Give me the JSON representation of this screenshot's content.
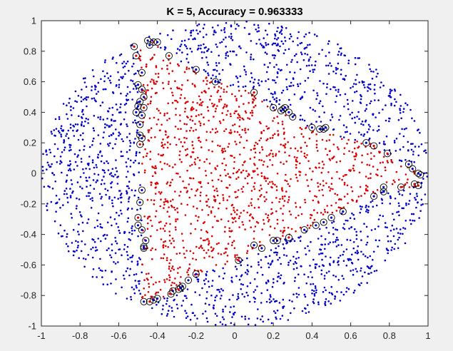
{
  "window": {
    "background": "#f0f0f0"
  },
  "chart_data": {
    "type": "scatter",
    "title": "K = 5, Accuracy = 0.963333",
    "xlabel": "",
    "ylabel": "",
    "xlim": [
      -1,
      1
    ],
    "ylim": [
      -1,
      1
    ],
    "xticks": [
      -1,
      -0.8,
      -0.6,
      -0.4,
      -0.2,
      0,
      0.2,
      0.4,
      0.6,
      0.8,
      1
    ],
    "yticks": [
      -1,
      -0.8,
      -0.6,
      -0.4,
      -0.2,
      0,
      0.2,
      0.4,
      0.6,
      0.8,
      1
    ],
    "tick_labels_x": [
      "-1",
      "-0.8",
      "-0.6",
      "-0.4",
      "-0.2",
      "0",
      "0.2",
      "0.4",
      "0.6",
      "0.8",
      "1"
    ],
    "tick_labels_y": [
      "-1",
      "-0.8",
      "-0.6",
      "-0.4",
      "-0.2",
      "0",
      "0.2",
      "0.4",
      "0.6",
      "0.8",
      "1"
    ],
    "grid": false,
    "legend": "none",
    "colors": {
      "blue": "#0000cc",
      "red": "#dd0000",
      "circle": "#000000",
      "axes_bg": "#ffffff"
    },
    "sampling": {
      "description": "approx. 3000 points uniformly distributed in the unit disk; red inside the decision region, blue outside",
      "total_points": 3000,
      "accuracy": 0.963333,
      "k": 5
    },
    "region_boundary": [
      [
        -0.5,
        0.83
      ],
      [
        -0.46,
        0.87
      ],
      [
        -0.42,
        0.86
      ],
      [
        -0.34,
        0.77
      ],
      [
        -0.2,
        0.68
      ],
      [
        -0.1,
        0.6
      ],
      [
        0.1,
        0.53
      ],
      [
        0.2,
        0.43
      ],
      [
        0.28,
        0.4
      ],
      [
        0.35,
        0.32
      ],
      [
        0.45,
        0.28
      ],
      [
        0.6,
        0.22
      ],
      [
        0.7,
        0.2
      ],
      [
        0.78,
        0.13
      ],
      [
        0.88,
        0.06
      ],
      [
        0.96,
        0.0
      ],
      [
        0.96,
        -0.08
      ],
      [
        0.88,
        -0.1
      ],
      [
        0.76,
        -0.12
      ],
      [
        0.72,
        -0.15
      ],
      [
        0.56,
        -0.25
      ],
      [
        0.5,
        -0.29
      ],
      [
        0.42,
        -0.35
      ],
      [
        0.36,
        -0.37
      ],
      [
        0.28,
        -0.42
      ],
      [
        0.22,
        -0.44
      ],
      [
        0.14,
        -0.49
      ],
      [
        0.02,
        -0.57
      ],
      [
        -0.2,
        -0.67
      ],
      [
        -0.28,
        -0.75
      ],
      [
        -0.32,
        -0.79
      ],
      [
        -0.4,
        -0.83
      ],
      [
        -0.48,
        -0.85
      ],
      [
        -0.48,
        -0.6
      ],
      [
        -0.48,
        -0.2
      ],
      [
        -0.48,
        0.2
      ],
      [
        -0.48,
        0.5
      ],
      [
        -0.5,
        0.8
      ]
    ],
    "misclassified": [
      {
        "x": -0.52,
        "y": 0.83,
        "class": "red"
      },
      {
        "x": -0.51,
        "y": 0.77,
        "class": "red"
      },
      {
        "x": -0.45,
        "y": 0.87,
        "class": "blue"
      },
      {
        "x": -0.42,
        "y": 0.86,
        "class": "red"
      },
      {
        "x": -0.44,
        "y": 0.84,
        "class": "blue"
      },
      {
        "x": -0.4,
        "y": 0.86,
        "class": "blue"
      },
      {
        "x": -0.34,
        "y": 0.77,
        "class": "red"
      },
      {
        "x": -0.2,
        "y": 0.68,
        "class": "blue"
      },
      {
        "x": -0.48,
        "y": 0.66,
        "class": "blue"
      },
      {
        "x": -0.1,
        "y": 0.6,
        "class": "blue"
      },
      {
        "x": -0.5,
        "y": 0.58,
        "class": "blue"
      },
      {
        "x": -0.48,
        "y": 0.55,
        "class": "blue"
      },
      {
        "x": -0.47,
        "y": 0.5,
        "class": "blue"
      },
      {
        "x": -0.49,
        "y": 0.47,
        "class": "blue"
      },
      {
        "x": -0.5,
        "y": 0.44,
        "class": "blue"
      },
      {
        "x": -0.47,
        "y": 0.43,
        "class": "red"
      },
      {
        "x": -0.51,
        "y": 0.4,
        "class": "blue"
      },
      {
        "x": -0.48,
        "y": 0.38,
        "class": "blue"
      },
      {
        "x": -0.49,
        "y": 0.32,
        "class": "blue"
      },
      {
        "x": -0.49,
        "y": 0.25,
        "class": "blue"
      },
      {
        "x": -0.48,
        "y": 0.23,
        "class": "blue"
      },
      {
        "x": -0.49,
        "y": 0.19,
        "class": "red"
      },
      {
        "x": 0.1,
        "y": 0.53,
        "class": "red"
      },
      {
        "x": 0.2,
        "y": 0.43,
        "class": "blue"
      },
      {
        "x": 0.24,
        "y": 0.41,
        "class": "blue"
      },
      {
        "x": 0.25,
        "y": 0.42,
        "class": "blue"
      },
      {
        "x": 0.26,
        "y": 0.43,
        "class": "blue"
      },
      {
        "x": 0.28,
        "y": 0.4,
        "class": "blue"
      },
      {
        "x": 0.3,
        "y": 0.37,
        "class": "blue"
      },
      {
        "x": 0.4,
        "y": 0.3,
        "class": "blue"
      },
      {
        "x": 0.44,
        "y": 0.29,
        "class": "blue"
      },
      {
        "x": 0.46,
        "y": 0.29,
        "class": "blue"
      },
      {
        "x": 0.47,
        "y": 0.3,
        "class": "blue"
      },
      {
        "x": 0.68,
        "y": 0.2,
        "class": "blue"
      },
      {
        "x": 0.72,
        "y": 0.18,
        "class": "red"
      },
      {
        "x": 0.79,
        "y": 0.13,
        "class": "red"
      },
      {
        "x": 0.9,
        "y": 0.06,
        "class": "blue"
      },
      {
        "x": 0.92,
        "y": 0.03,
        "class": "blue"
      },
      {
        "x": 0.95,
        "y": 0.0,
        "class": "blue"
      },
      {
        "x": 0.96,
        "y": -0.01,
        "class": "blue"
      },
      {
        "x": 0.93,
        "y": -0.07,
        "class": "red"
      },
      {
        "x": 0.95,
        "y": -0.08,
        "class": "red"
      },
      {
        "x": 0.86,
        "y": -0.09,
        "class": "red"
      },
      {
        "x": 0.77,
        "y": -0.09,
        "class": "blue"
      },
      {
        "x": 0.77,
        "y": -0.12,
        "class": "blue"
      },
      {
        "x": 0.72,
        "y": -0.15,
        "class": "blue"
      },
      {
        "x": -0.48,
        "y": -0.11,
        "class": "blue"
      },
      {
        "x": -0.49,
        "y": -0.19,
        "class": "blue"
      },
      {
        "x": -0.5,
        "y": -0.29,
        "class": "red"
      },
      {
        "x": -0.5,
        "y": -0.34,
        "class": "blue"
      },
      {
        "x": -0.48,
        "y": -0.37,
        "class": "blue"
      },
      {
        "x": -0.46,
        "y": -0.44,
        "class": "blue"
      },
      {
        "x": -0.47,
        "y": -0.48,
        "class": "blue"
      },
      {
        "x": -0.47,
        "y": -0.49,
        "class": "blue"
      },
      {
        "x": 0.56,
        "y": -0.25,
        "class": "blue"
      },
      {
        "x": 0.5,
        "y": -0.29,
        "class": "blue"
      },
      {
        "x": 0.46,
        "y": -0.32,
        "class": "blue"
      },
      {
        "x": 0.42,
        "y": -0.34,
        "class": "blue"
      },
      {
        "x": 0.36,
        "y": -0.37,
        "class": "blue"
      },
      {
        "x": 0.28,
        "y": -0.42,
        "class": "red"
      },
      {
        "x": 0.22,
        "y": -0.44,
        "class": "blue"
      },
      {
        "x": 0.2,
        "y": -0.44,
        "class": "blue"
      },
      {
        "x": 0.14,
        "y": -0.49,
        "class": "blue"
      },
      {
        "x": 0.1,
        "y": -0.47,
        "class": "blue"
      },
      {
        "x": 0.02,
        "y": -0.57,
        "class": "red"
      },
      {
        "x": -0.2,
        "y": -0.66,
        "class": "blue"
      },
      {
        "x": -0.24,
        "y": -0.7,
        "class": "blue"
      },
      {
        "x": -0.27,
        "y": -0.74,
        "class": "blue"
      },
      {
        "x": -0.28,
        "y": -0.75,
        "class": "blue"
      },
      {
        "x": -0.29,
        "y": -0.76,
        "class": "red"
      },
      {
        "x": -0.32,
        "y": -0.77,
        "class": "blue"
      },
      {
        "x": -0.33,
        "y": -0.79,
        "class": "red"
      },
      {
        "x": -0.4,
        "y": -0.82,
        "class": "blue"
      },
      {
        "x": -0.42,
        "y": -0.83,
        "class": "blue"
      },
      {
        "x": -0.44,
        "y": -0.84,
        "class": "red"
      },
      {
        "x": -0.47,
        "y": -0.84,
        "class": "blue"
      }
    ]
  }
}
